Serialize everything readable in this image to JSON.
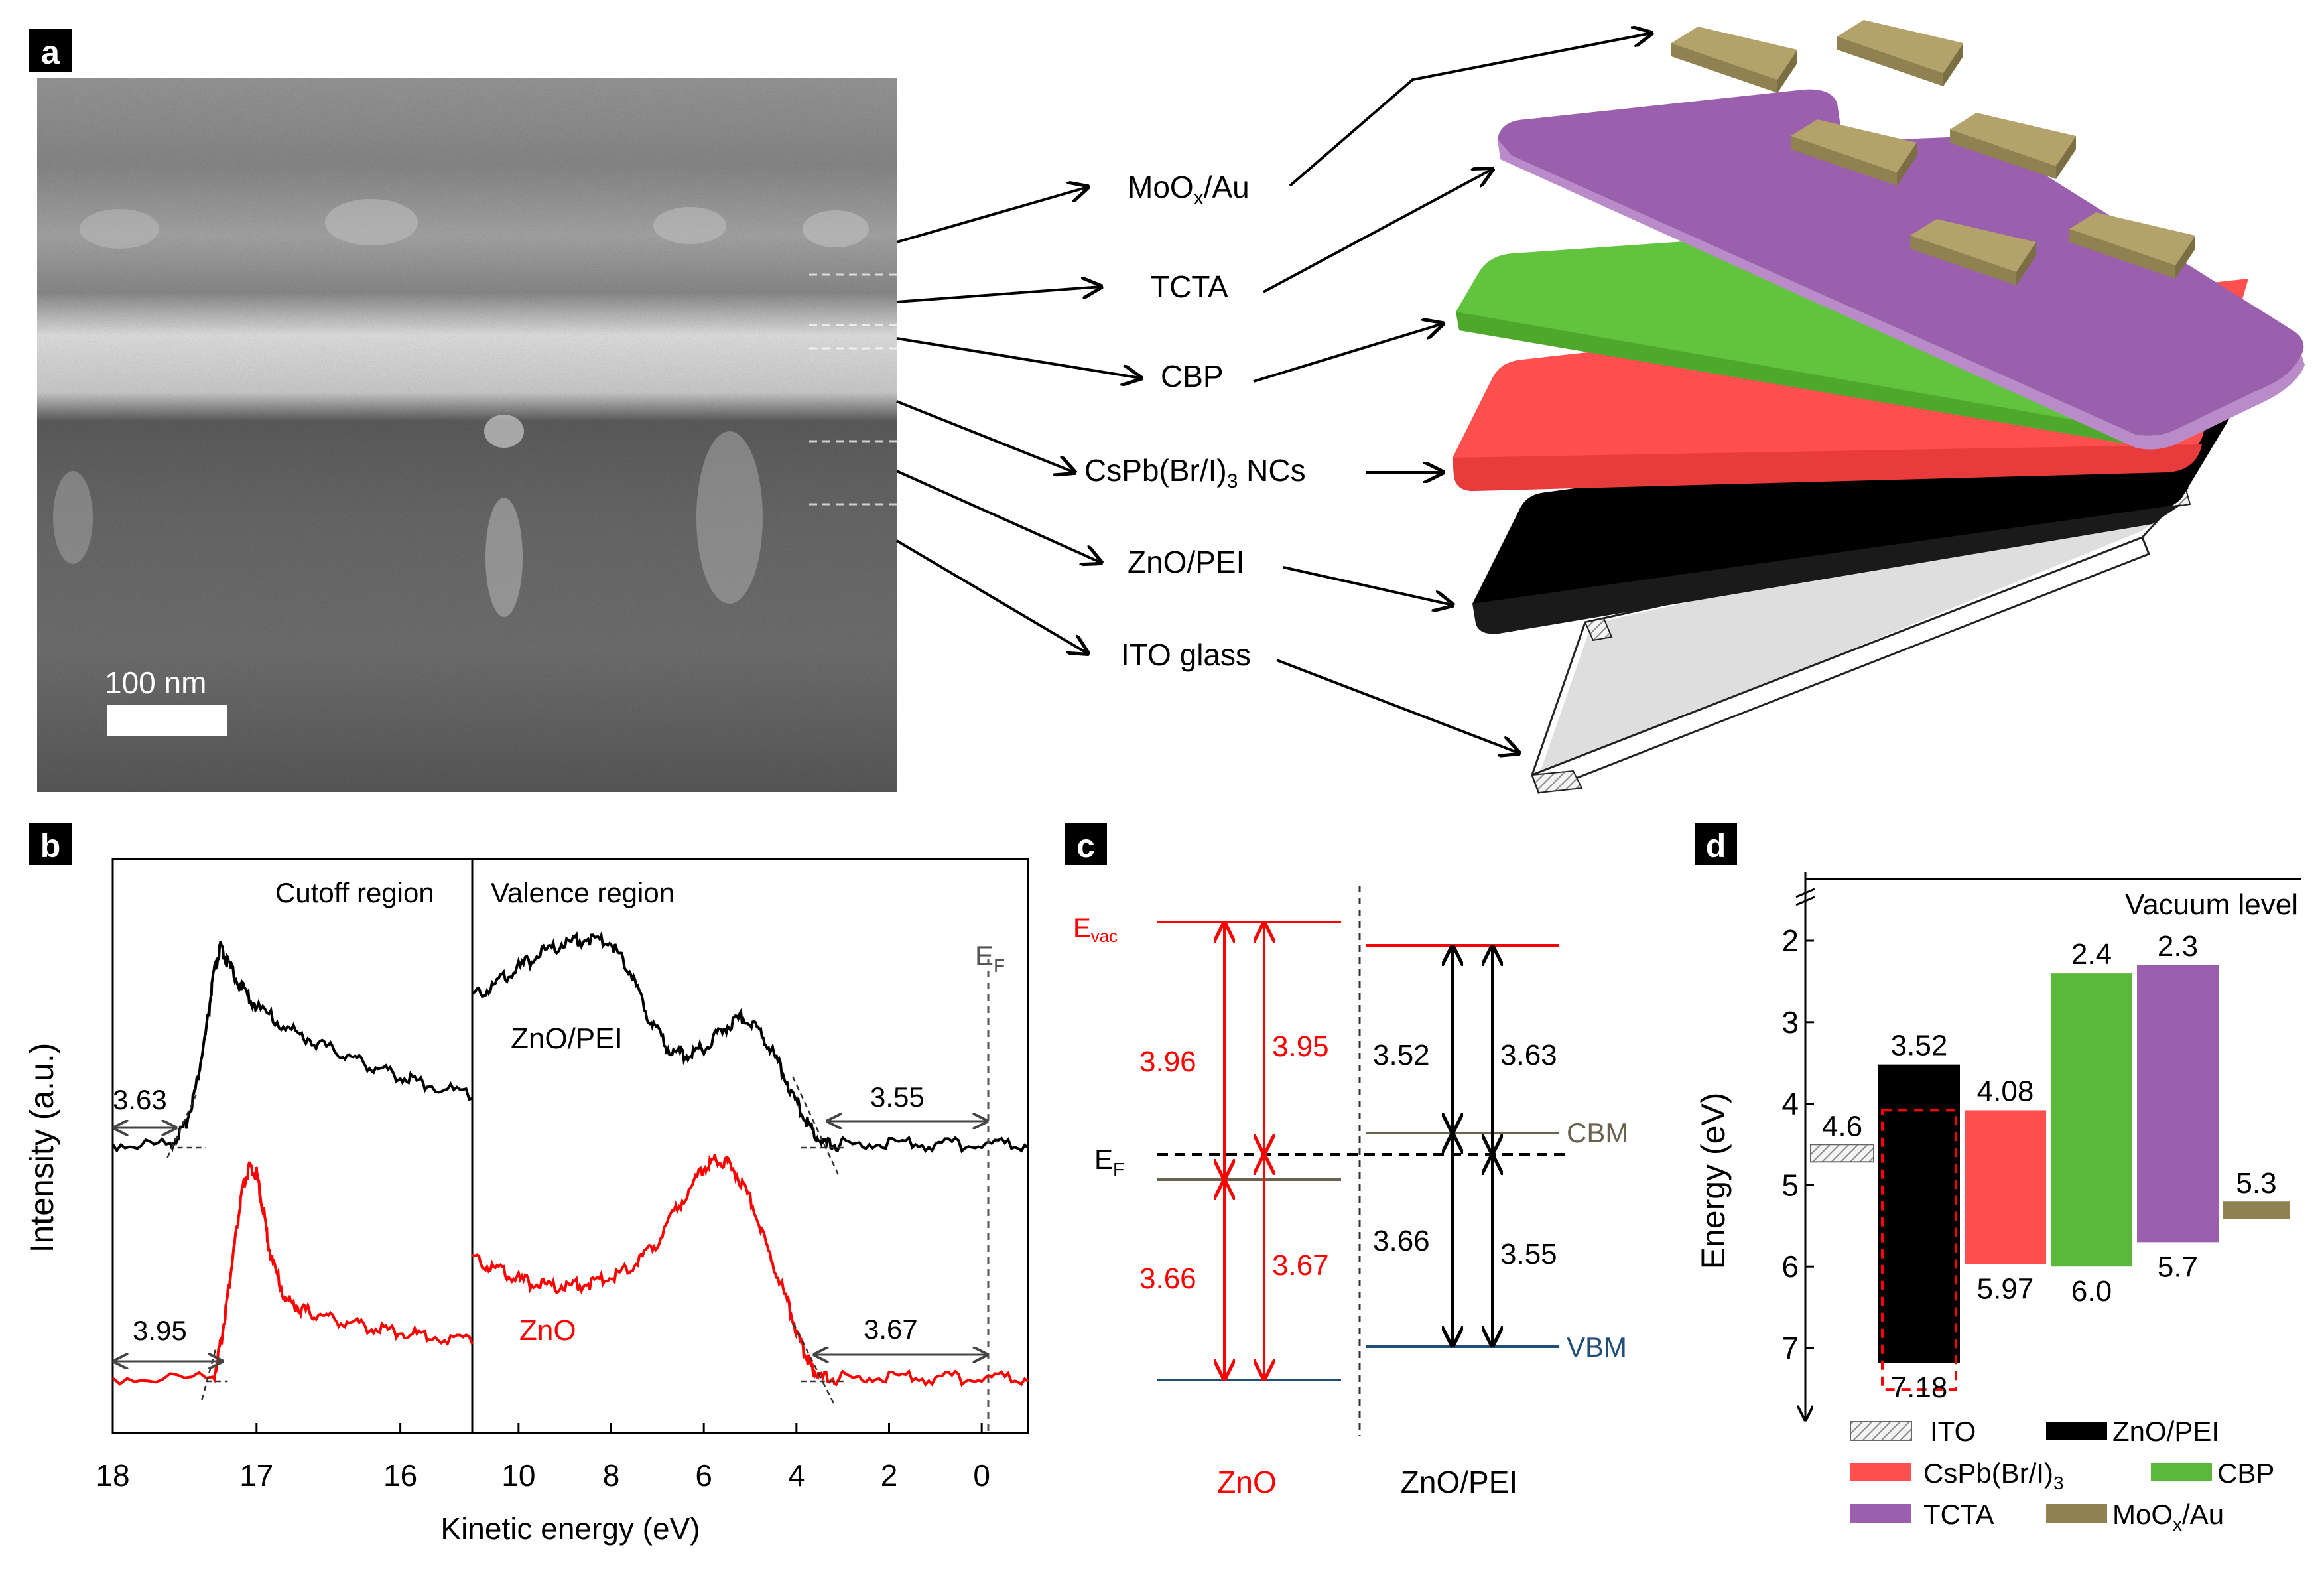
{
  "panels": {
    "a": {
      "label": "a",
      "scale_bar": "100 nm",
      "layers": [
        "MoOx/Au",
        "TCTA",
        "CBP",
        "CsPb(Br/I)3 NCs",
        "ZnO/PEI",
        "ITO glass"
      ]
    },
    "b": {
      "label": "b",
      "left_title": "Cutoff region",
      "right_title": "Valence region",
      "ylabel": "Intensity (a.u.)",
      "xlabel": "Kinetic energy (eV)",
      "ef_label": "EF",
      "series_labels": {
        "top": "ZnO/PEI",
        "bottom": "ZnO"
      },
      "annotations": {
        "cutoff_top": "3.63",
        "cutoff_bottom": "3.95",
        "valence_top": "3.55",
        "valence_bottom": "3.67"
      },
      "left_ticks": [
        "18",
        "17",
        "16"
      ],
      "right_ticks": [
        "10",
        "8",
        "6",
        "4",
        "2",
        "0"
      ]
    },
    "c": {
      "label": "c",
      "evac_label": "Evac",
      "ef_label": "EF",
      "cbm_label": "CBM",
      "vbm_label": "VBM",
      "zno_values": [
        "3.96",
        "3.95",
        "3.66",
        "3.67"
      ],
      "znopei_values": [
        "3.52",
        "3.63",
        "3.66",
        "3.55"
      ],
      "xlabels": [
        "ZnO",
        "ZnO/PEI"
      ]
    },
    "d": {
      "label": "d",
      "ylabel": "Energy (eV)",
      "vacuum_label": "Vacuum level",
      "legend": [
        "ITO",
        "ZnO/PEI",
        "CsPb(Br/I)3",
        "CBP",
        "TCTA",
        "MoOx/Au"
      ]
    }
  },
  "chart_data": [
    {
      "type": "line",
      "panel": "b",
      "title": "Cutoff region",
      "xlabel": "Kinetic energy (eV)",
      "ylabel": "Intensity (a.u.)",
      "xlim": [
        18,
        15.5
      ],
      "series": [
        {
          "name": "ZnO/PEI",
          "color": "#000000",
          "x": [
            18.0,
            17.6,
            17.5,
            17.42,
            17.35,
            17.3,
            17.25,
            17.2,
            17.1,
            17.0,
            16.8,
            16.6,
            16.4,
            16.2,
            16.0,
            15.8,
            15.5
          ],
          "y": [
            0.0,
            0.0,
            0.08,
            0.28,
            0.55,
            0.82,
            0.96,
            0.88,
            0.76,
            0.67,
            0.57,
            0.5,
            0.44,
            0.38,
            0.33,
            0.29,
            0.24
          ]
        },
        {
          "name": "ZnO",
          "color": "#ff0000",
          "x": [
            18.0,
            17.3,
            17.25,
            17.2,
            17.15,
            17.1,
            17.05,
            17.0,
            16.95,
            16.9,
            16.8,
            16.7,
            16.6,
            16.4,
            16.2,
            16.0,
            15.8,
            15.5
          ],
          "y": [
            0.0,
            0.0,
            0.15,
            0.38,
            0.62,
            0.85,
            0.96,
            0.93,
            0.75,
            0.55,
            0.36,
            0.32,
            0.29,
            0.26,
            0.23,
            0.21,
            0.19,
            0.17
          ]
        }
      ],
      "annotations": [
        {
          "series": "ZnO/PEI",
          "value": 3.63
        },
        {
          "series": "ZnO",
          "value": 3.95
        }
      ]
    },
    {
      "type": "line",
      "panel": "b",
      "title": "Valence region",
      "xlabel": "Kinetic energy (eV)",
      "xlim": [
        11,
        -1
      ],
      "series": [
        {
          "name": "ZnO/PEI",
          "color": "#000000",
          "x": [
            11.0,
            10.5,
            10.0,
            9.5,
            9.0,
            8.5,
            8.0,
            7.6,
            7.2,
            6.8,
            6.4,
            6.0,
            5.6,
            5.2,
            4.8,
            4.4,
            4.0,
            3.7,
            3.4,
            3.0,
            2.0,
            1.0,
            0.0,
            -1.0
          ],
          "y": [
            0.72,
            0.78,
            0.86,
            0.93,
            0.98,
            1.0,
            0.98,
            0.85,
            0.62,
            0.47,
            0.43,
            0.47,
            0.56,
            0.62,
            0.56,
            0.4,
            0.2,
            0.08,
            0.0,
            0.0,
            0.0,
            0.0,
            0.0,
            0.0
          ]
        },
        {
          "name": "ZnO",
          "color": "#ff0000",
          "x": [
            11.0,
            10.5,
            10.0,
            9.5,
            9.0,
            8.5,
            8.0,
            7.5,
            7.0,
            6.5,
            6.0,
            5.7,
            5.4,
            5.0,
            4.6,
            4.2,
            3.9,
            3.7,
            3.5,
            3.0,
            2.0,
            1.0,
            0.0,
            -1.0
          ],
          "y": [
            0.55,
            0.5,
            0.45,
            0.42,
            0.42,
            0.43,
            0.46,
            0.52,
            0.62,
            0.8,
            0.96,
            1.0,
            0.97,
            0.82,
            0.58,
            0.35,
            0.15,
            0.06,
            0.0,
            0.0,
            0.0,
            0.0,
            0.0,
            0.0
          ]
        }
      ],
      "annotations": [
        {
          "series": "ZnO/PEI",
          "value": 3.55
        },
        {
          "series": "ZnO",
          "value": 3.67
        }
      ]
    },
    {
      "type": "bar",
      "panel": "d",
      "ylabel": "Energy (eV)",
      "ylim": [
        1,
        8
      ],
      "yticks": [
        2,
        3,
        4,
        5,
        6,
        7
      ],
      "layers": [
        {
          "name": "ITO",
          "color": "#cccccc",
          "levels": [
            4.6
          ],
          "labels": [
            "4.6"
          ]
        },
        {
          "name": "ZnO/PEI",
          "color": "#000000",
          "top": 3.52,
          "bottom": 7.18,
          "labels": [
            "3.52",
            "7.18"
          ]
        },
        {
          "name": "CsPb(Br/I)3",
          "color": "#ff4f4f",
          "top": 4.08,
          "bottom": 5.97,
          "labels": [
            "4.08",
            "5.97"
          ]
        },
        {
          "name": "CBP",
          "color": "#5cb83a",
          "top": 2.4,
          "bottom": 6.0,
          "labels": [
            "2.4",
            "6.0"
          ]
        },
        {
          "name": "TCTA",
          "color": "#9a5fad",
          "top": 2.3,
          "bottom": 5.7,
          "labels": [
            "2.3",
            "5.7"
          ]
        },
        {
          "name": "MoOx/Au",
          "color": "#8f8250",
          "levels": [
            5.3
          ],
          "labels": [
            "5.3"
          ]
        }
      ]
    }
  ]
}
